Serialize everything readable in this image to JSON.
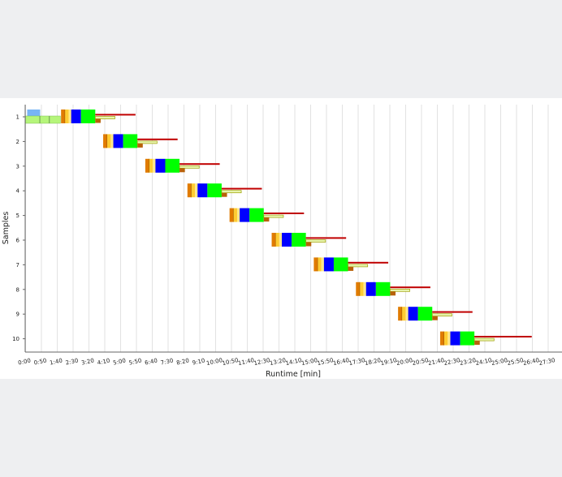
{
  "chart_data": {
    "type": "gantt",
    "xlabel": "Runtime [min]",
    "ylabel": "Samples",
    "xlim": [
      0,
      1680
    ],
    "x_tick_seconds": [
      0,
      50,
      100,
      150,
      200,
      250,
      300,
      350,
      400,
      450,
      500,
      550,
      600,
      650,
      700,
      750,
      800,
      850,
      900,
      950,
      1000,
      1050,
      1100,
      1150,
      1200,
      1250,
      1300,
      1350,
      1400,
      1450,
      1500,
      1550,
      1600,
      1650
    ],
    "x_tick_labels": [
      "0:00",
      "0:50",
      "1:40",
      "2:30",
      "3:20",
      "4:10",
      "5:00",
      "5:50",
      "6:40",
      "7:30",
      "8:20",
      "9:10",
      "10:00",
      "10:50",
      "11:40",
      "12:30",
      "13:20",
      "14:10",
      "15:00",
      "15:50",
      "16:40",
      "17:30",
      "18:20",
      "19:10",
      "20:00",
      "20:50",
      "21:40",
      "22:30",
      "23:20",
      "24:10",
      "25:00",
      "25:50",
      "26:40",
      "27:30"
    ],
    "samples": [
      "1",
      "2",
      "3",
      "4",
      "5",
      "6",
      "7",
      "8",
      "9",
      "10"
    ],
    "sample_interval_seconds": 133,
    "grid": "vertical",
    "colors": {
      "orange": "#e07b00",
      "yellow": "#ffcc33",
      "pale_yellow": "#ffe88a",
      "blue": "#0000ff",
      "green": "#00ff00",
      "dark_red": "#c00000",
      "brown": "#b8620a",
      "olive": "#9e9e00",
      "light_green": "#b5f57a",
      "light_blue": "#77b4f5",
      "grid": "#e2e2e2"
    },
    "segments_main": [
      {
        "name": "orange",
        "start": 0,
        "end": 12,
        "color": "#e07b00"
      },
      {
        "name": "yellow",
        "start": 12,
        "end": 24,
        "color": "#ffcc33"
      },
      {
        "name": "pale_yellow",
        "start": 24,
        "end": 32,
        "color": "#ffe88a"
      },
      {
        "name": "blue",
        "start": 32,
        "end": 63,
        "color": "#0000ff"
      },
      {
        "name": "green",
        "start": 63,
        "end": 108,
        "color": "#00ff00"
      }
    ],
    "segments_sub": [
      {
        "name": "red_line",
        "start": 108,
        "end": 235,
        "color": "#c00000",
        "lane": "top"
      },
      {
        "name": "olive_bar",
        "start": 108,
        "end": 170,
        "color": "#9e9e00",
        "lane": "mid"
      },
      {
        "name": "light_bar",
        "start": 108,
        "end": 166,
        "color": "#e8f5b0",
        "lane": "mid"
      },
      {
        "name": "brown_block",
        "start": 108,
        "end": 125,
        "color": "#b8620a",
        "lane": "low"
      }
    ],
    "sample_10_red_line_end": 1598,
    "preparation_sample_1": [
      {
        "name": "prep_blue",
        "start": 5,
        "end": 46,
        "color": "#77b4f5",
        "lane": "top"
      },
      {
        "name": "prep_green",
        "start": 0,
        "end": 110,
        "color": "#b5f57a",
        "lane": "bottom"
      }
    ],
    "first_sample_start": 112
  }
}
